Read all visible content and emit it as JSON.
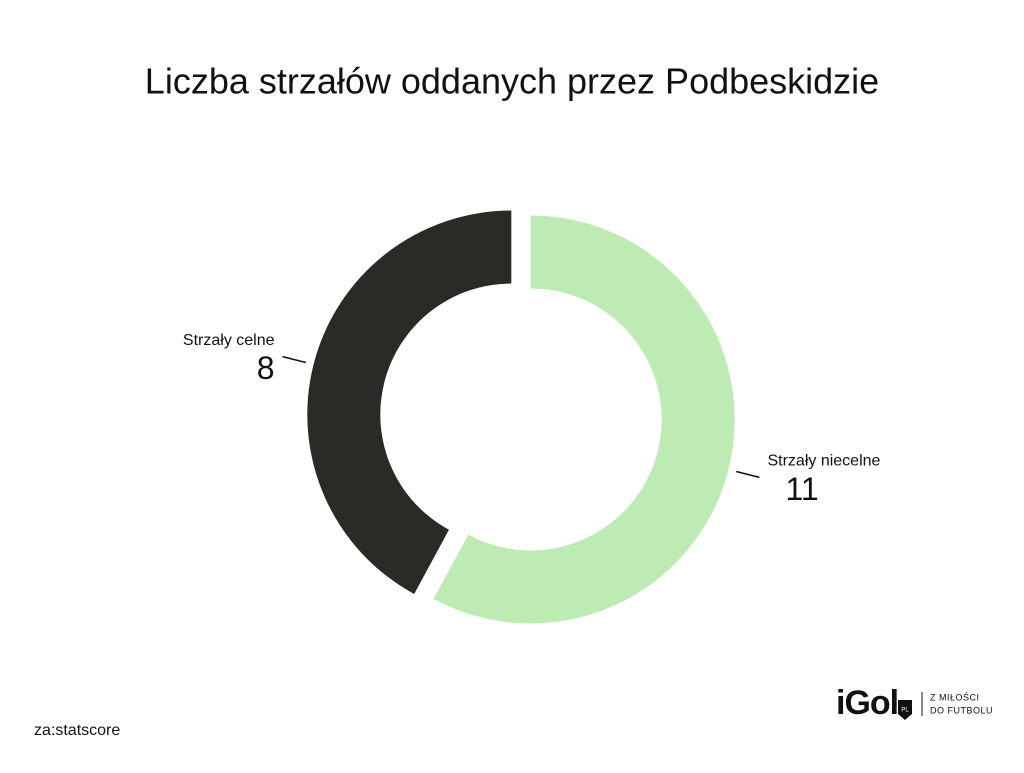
{
  "chart_data": {
    "type": "pie",
    "donut": true,
    "title": "Liczba strzałów oddanych przez Podbeskidzie",
    "categories": [
      "Strzały niecelne",
      "Strzały celne"
    ],
    "values": [
      11,
      8
    ],
    "colors": [
      "#bdebb3",
      "#282b26"
    ]
  },
  "source": "za:statscore",
  "logo": {
    "brand": "iGol",
    "badge": "PL",
    "tagline": [
      "Z MIŁOŚCI",
      "DO FUTBOLU"
    ]
  }
}
